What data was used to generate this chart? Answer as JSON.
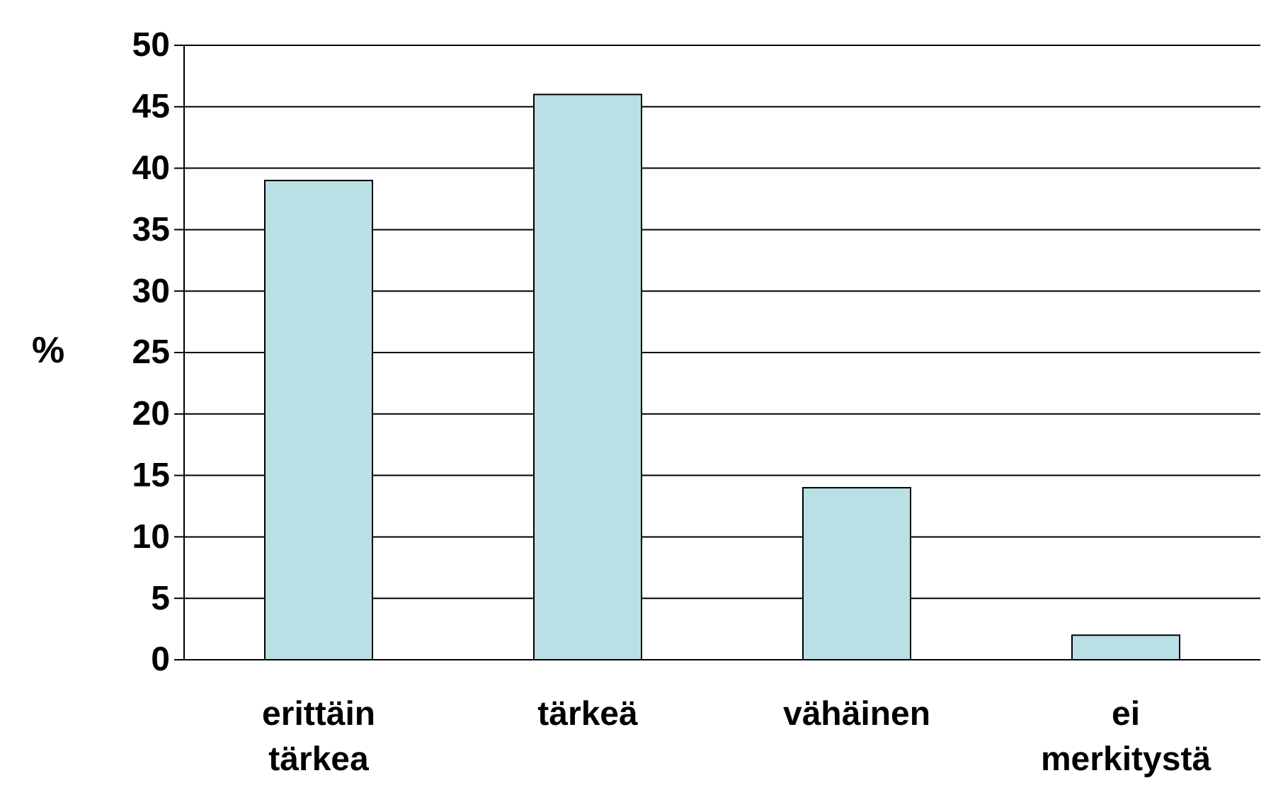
{
  "chart_data": {
    "type": "bar",
    "ylabel": "%",
    "categories": [
      "erittäin tärkea",
      "tärkeä",
      "vähäinen",
      "ei merkitystä"
    ],
    "values": [
      39,
      46,
      14,
      2
    ],
    "color": "#b9e0e4",
    "ylim": [
      0,
      50
    ],
    "yticks": [
      0,
      5,
      10,
      15,
      20,
      25,
      30,
      35,
      40,
      45,
      50
    ],
    "grid": "y"
  }
}
